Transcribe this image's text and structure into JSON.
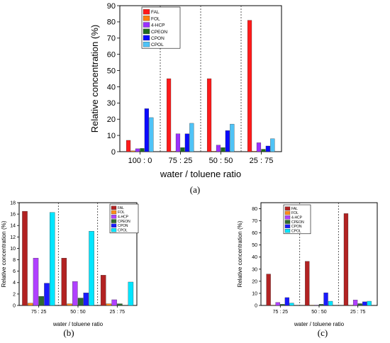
{
  "panel_labels": [
    "(a)",
    "(b)",
    "(c)"
  ],
  "colors": {
    "FAL": "#ff1a1a",
    "FOL": "#ff7f0e",
    "4-HCP": "#9b30ff",
    "CPEON": "#1f6b1f",
    "CPON": "#0a0aff",
    "CPOL": "#4fc3f7"
  },
  "colors_small": {
    "FAL": "#b22222",
    "FOL": "#ff8c1a",
    "4-HCP": "#b040ff",
    "CPEON": "#2e6b2e",
    "CPON": "#1a1aff",
    "CPOL": "#00e5ff"
  },
  "chart_data": [
    {
      "type": "bar",
      "panel": "(a)",
      "xlabel": "water / toluene ratio",
      "ylabel": "Relative concentration (%)",
      "ylim": [
        0,
        90
      ],
      "yticks": [
        0,
        10,
        20,
        30,
        40,
        50,
        60,
        70,
        80,
        90
      ],
      "grid": false,
      "legend_position": "top-left",
      "categories": [
        "100 : 0",
        "75 : 25",
        "50 : 50",
        "25 : 75"
      ],
      "series": [
        {
          "name": "FAL",
          "values": [
            7,
            45,
            45,
            81
          ]
        },
        {
          "name": "FOL",
          "values": [
            0.5,
            0.3,
            0.3,
            0.3
          ]
        },
        {
          "name": "4-HCP",
          "values": [
            1.8,
            11,
            4,
            5.5
          ]
        },
        {
          "name": "CPEON",
          "values": [
            2,
            2.5,
            2.5,
            1.5
          ]
        },
        {
          "name": "CPON",
          "values": [
            26.5,
            11,
            13,
            3.5
          ]
        },
        {
          "name": "CPOL",
          "values": [
            21,
            17.5,
            17,
            8
          ]
        }
      ]
    },
    {
      "type": "bar",
      "panel": "(b)",
      "xlabel": "water / toluene ratio",
      "ylabel": "Relative concentration (%)",
      "ylim": [
        0,
        18
      ],
      "yticks": [
        0,
        2,
        4,
        6,
        8,
        10,
        12,
        14,
        16,
        18
      ],
      "grid": false,
      "legend_position": "top-right",
      "categories": [
        "75 : 25",
        "50 : 50",
        "25 : 75"
      ],
      "series": [
        {
          "name": "FAL",
          "values": [
            16.5,
            8.3,
            5.3
          ]
        },
        {
          "name": "FOL",
          "values": [
            0.4,
            0.3,
            0.3
          ]
        },
        {
          "name": "4-HCP",
          "values": [
            8.3,
            4.2,
            1
          ]
        },
        {
          "name": "CPEON",
          "values": [
            1.6,
            1.3,
            0.3
          ]
        },
        {
          "name": "CPON",
          "values": [
            3.9,
            2.2,
            0
          ]
        },
        {
          "name": "CPOL",
          "values": [
            16.3,
            13,
            4.1
          ]
        }
      ]
    },
    {
      "type": "bar",
      "panel": "(c)",
      "xlabel": "water / toluene ratio",
      "ylabel": "Relative concentration (%)",
      "ylim": [
        0,
        85
      ],
      "yticks": [
        0,
        10,
        20,
        30,
        40,
        50,
        60,
        70,
        80
      ],
      "grid": false,
      "legend_position": "top-left",
      "categories": [
        "75 : 25",
        "50 : 50",
        "25 : 75"
      ],
      "series": [
        {
          "name": "FAL",
          "values": [
            26,
            36.5,
            76
          ]
        },
        {
          "name": "FOL",
          "values": [
            0.3,
            0.3,
            0.3
          ]
        },
        {
          "name": "4-HCP",
          "values": [
            2.5,
            0.3,
            4.5
          ]
        },
        {
          "name": "CPEON",
          "values": [
            1,
            1,
            1.5
          ]
        },
        {
          "name": "CPON",
          "values": [
            6.5,
            10.5,
            3
          ]
        },
        {
          "name": "CPOL",
          "values": [
            2,
            3.5,
            3.5
          ]
        }
      ]
    }
  ]
}
